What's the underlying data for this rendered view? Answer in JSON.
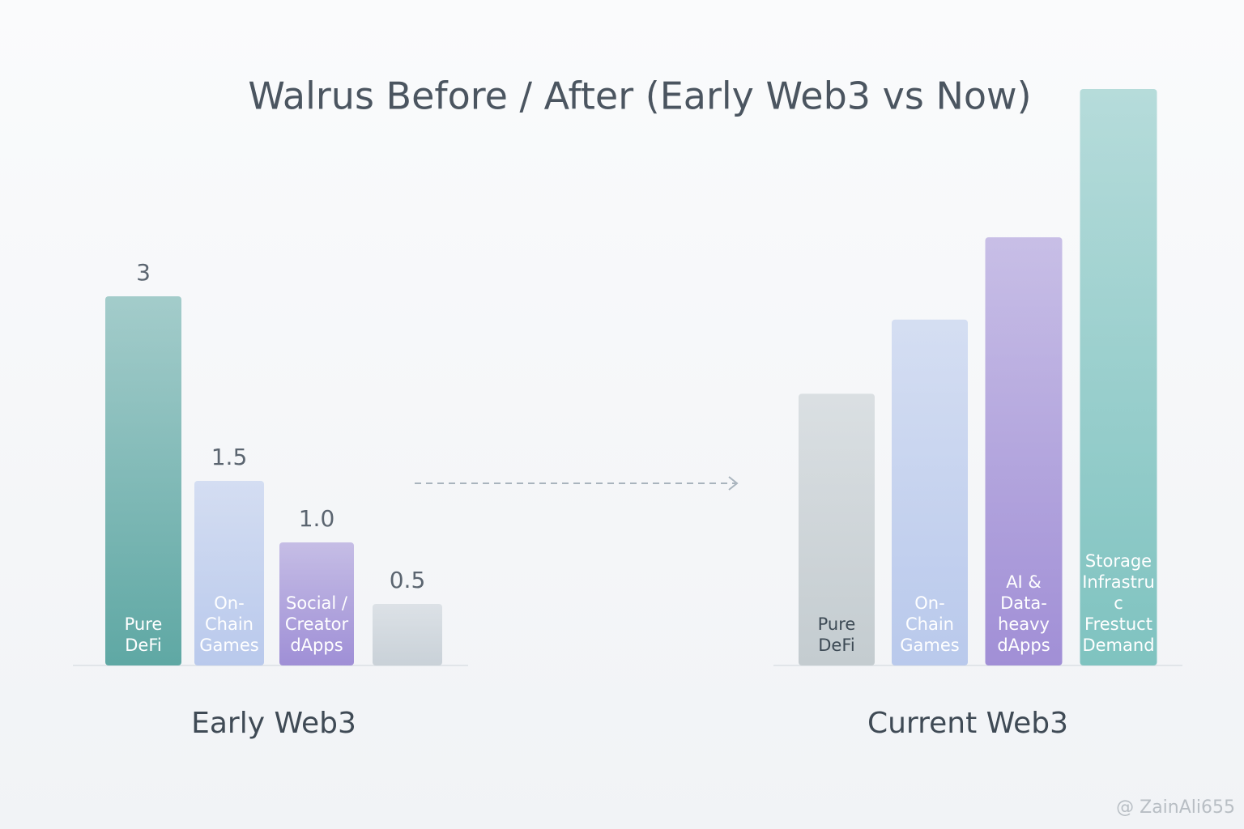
{
  "title": "Walrus Before / After (Early Web3 vs Now)",
  "watermark": "@ ZainAli655",
  "chart_data": [
    {
      "type": "bar",
      "xlabel": "Early Web3",
      "categories": [
        "Pure DeFi",
        "On-Chain Games",
        "Social / Creator dApps",
        null
      ],
      "values": [
        3,
        1.5,
        1.0,
        0.5
      ],
      "value_labels": [
        "3",
        "1.5",
        "1.0",
        "0.5"
      ],
      "colors": [
        "#5fa8a4",
        "#b9c9ec",
        "#9f8fd6",
        "#c9d1d8"
      ],
      "ylim": [
        0,
        3.5
      ]
    },
    {
      "type": "bar",
      "xlabel": "Current Web3",
      "categories": [
        "Pure DeFi",
        "On-Chain Games",
        "AI & Data-heavy dApps",
        "Storage Infrastruc Frestuct Demand"
      ],
      "values": [
        1.65,
        2.1,
        2.6,
        3.5
      ],
      "colors": [
        "#c4ccd0",
        "#b9c9ec",
        "#a18fd6",
        "#7fc3c0"
      ],
      "ylim": [
        0,
        3.5
      ]
    }
  ]
}
